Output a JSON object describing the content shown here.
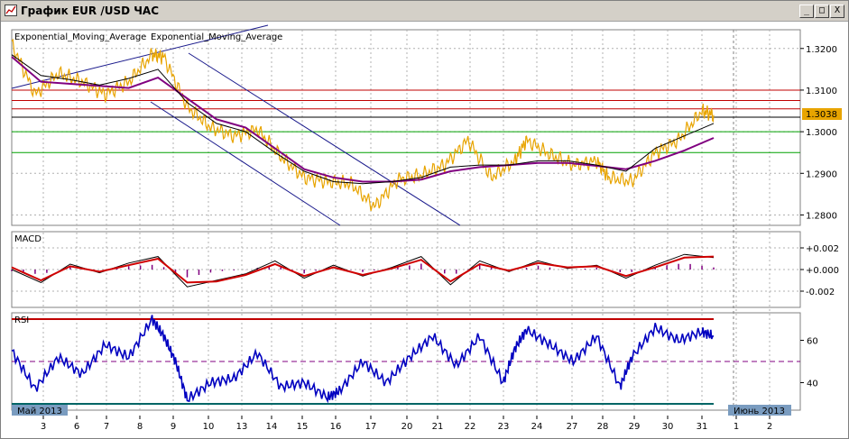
{
  "window": {
    "title": "График EUR /USD ЧАС",
    "buttons": {
      "minimize": "_",
      "maximize": "□",
      "close": "X"
    }
  },
  "main_panel": {
    "legend": [
      "Exponential_Moving_Average",
      "Exponential_Moving_Average"
    ],
    "legend_colors": [
      "#000080",
      "#800080"
    ],
    "y_ticks": [
      "1.3200",
      "1.3100",
      "1.3000",
      "1.2900",
      "1.2800"
    ],
    "current_price": "1.3038"
  },
  "macd_panel": {
    "label": "MACD",
    "y_ticks": [
      "+0.002",
      "+0.000",
      "-0.002"
    ]
  },
  "rsi_panel": {
    "label": "RSI",
    "y_ticks": [
      "60",
      "40"
    ]
  },
  "x_axis": {
    "month_left": "Май 2013",
    "month_right": "Июнь 2013",
    "days": [
      "3",
      "6",
      "7",
      "8",
      "9",
      "10",
      "13",
      "14",
      "15",
      "16",
      "17",
      "20",
      "21",
      "22",
      "23",
      "24",
      "27",
      "28",
      "29",
      "30",
      "31",
      "1",
      "2"
    ]
  },
  "colors": {
    "price": "#e8a400",
    "ema_fast": "#000000",
    "ema_slow": "#800080",
    "macd_signal": "#d00000",
    "rsi": "#0000c0",
    "resistance": "#d00000",
    "support": "#00a000",
    "channel": "#000080"
  },
  "chart_data": [
    {
      "type": "line",
      "title": "EUR/USD H1",
      "ylim": [
        1.2775,
        1.3245
      ],
      "series": [
        {
          "name": "Exponential_Moving_Average",
          "x": [
            0,
            5,
            10,
            15,
            20,
            25,
            30,
            35,
            40,
            45,
            50,
            55,
            60,
            65,
            70,
            75,
            80,
            85,
            90,
            95,
            100,
            105,
            110,
            115,
            120
          ],
          "values": [
            1.3185,
            1.3135,
            1.3125,
            1.3112,
            1.3128,
            1.315,
            1.307,
            1.302,
            1.3,
            1.295,
            1.2905,
            1.288,
            1.2875,
            1.288,
            1.289,
            1.2915,
            1.292,
            1.292,
            1.293,
            1.293,
            1.292,
            1.2905,
            1.296,
            1.299,
            1.302
          ]
        },
        {
          "name": "Exponential_Moving_Average",
          "x": [
            0,
            5,
            10,
            15,
            20,
            25,
            30,
            35,
            40,
            45,
            50,
            55,
            60,
            65,
            70,
            75,
            80,
            85,
            90,
            95,
            100,
            105,
            110,
            115,
            120
          ],
          "values": [
            1.318,
            1.312,
            1.3115,
            1.311,
            1.3105,
            1.313,
            1.308,
            1.303,
            1.301,
            1.296,
            1.291,
            1.289,
            1.288,
            1.288,
            1.2885,
            1.2905,
            1.2915,
            1.292,
            1.2925,
            1.2925,
            1.2918,
            1.291,
            1.293,
            1.2955,
            1.2985
          ]
        }
      ],
      "price": {
        "x": [
          0,
          4,
          8,
          12,
          16,
          20,
          24,
          26,
          30,
          34,
          38,
          42,
          46,
          50,
          54,
          58,
          62,
          66,
          70,
          74,
          78,
          82,
          86,
          88,
          92,
          96,
          100,
          102,
          106,
          110,
          114,
          118,
          120
        ],
        "values": [
          1.321,
          1.309,
          1.314,
          1.312,
          1.309,
          1.312,
          1.3185,
          1.318,
          1.306,
          1.301,
          1.299,
          1.3005,
          1.294,
          1.289,
          1.288,
          1.2875,
          1.282,
          1.2885,
          1.2895,
          1.292,
          1.298,
          1.289,
          1.293,
          1.298,
          1.2945,
          1.292,
          1.293,
          1.289,
          1.288,
          1.295,
          1.298,
          1.305,
          1.304
        ]
      },
      "horizontal_lines": [
        1.31,
        1.3075,
        1.3055,
        1.3035,
        1.3,
        1.295
      ],
      "current_price": 1.3038
    },
    {
      "type": "line",
      "ylim": [
        -0.0035,
        0.0035
      ],
      "series": [
        {
          "name": "MACD",
          "x": [
            0,
            5,
            10,
            15,
            20,
            25,
            30,
            35,
            40,
            45,
            50,
            55,
            60,
            65,
            70,
            75,
            80,
            85,
            90,
            95,
            100,
            105,
            110,
            115,
            120
          ],
          "values": [
            0.0,
            -0.0012,
            0.0005,
            -0.0003,
            0.0006,
            0.0012,
            -0.0016,
            -0.001,
            -0.0004,
            0.0008,
            -0.0008,
            0.0004,
            -0.0006,
            0.0002,
            0.0012,
            -0.0014,
            0.0008,
            -0.0002,
            0.0008,
            0.0001,
            0.0004,
            -0.0008,
            0.0004,
            0.0014,
            0.0011
          ]
        },
        {
          "x": [
            0,
            5,
            10,
            15,
            20,
            25,
            30,
            35,
            40,
            45,
            50,
            55,
            60,
            65,
            70,
            75,
            80,
            85,
            90,
            95,
            100,
            105,
            110,
            115,
            120
          ],
          "values": [
            0.0002,
            -0.001,
            0.0003,
            -0.0002,
            0.0004,
            0.001,
            -0.0012,
            -0.0011,
            -0.0005,
            0.0005,
            -0.0006,
            0.0002,
            -0.0005,
            0.0001,
            0.0009,
            -0.0011,
            0.0005,
            -0.0001,
            0.0006,
            0.0002,
            0.0003,
            -0.0006,
            0.0002,
            0.0011,
            0.0012
          ]
        }
      ]
    },
    {
      "type": "line",
      "ylim": [
        27,
        73
      ],
      "series": [
        {
          "name": "RSI",
          "x": [
            0,
            4,
            8,
            12,
            16,
            20,
            24,
            26,
            28,
            30,
            34,
            38,
            42,
            46,
            50,
            54,
            56,
            60,
            64,
            68,
            72,
            76,
            80,
            84,
            86,
            88,
            92,
            96,
            100,
            104,
            106,
            110,
            114,
            118,
            120
          ],
          "values": [
            55,
            37,
            52,
            44,
            58,
            52,
            70,
            62,
            50,
            32,
            40,
            42,
            54,
            38,
            40,
            33,
            36,
            50,
            40,
            52,
            62,
            48,
            62,
            40,
            56,
            65,
            58,
            50,
            62,
            38,
            52,
            66,
            60,
            64,
            62
          ]
        }
      ],
      "horizontal_lines": [
        70,
        50,
        30
      ]
    }
  ]
}
